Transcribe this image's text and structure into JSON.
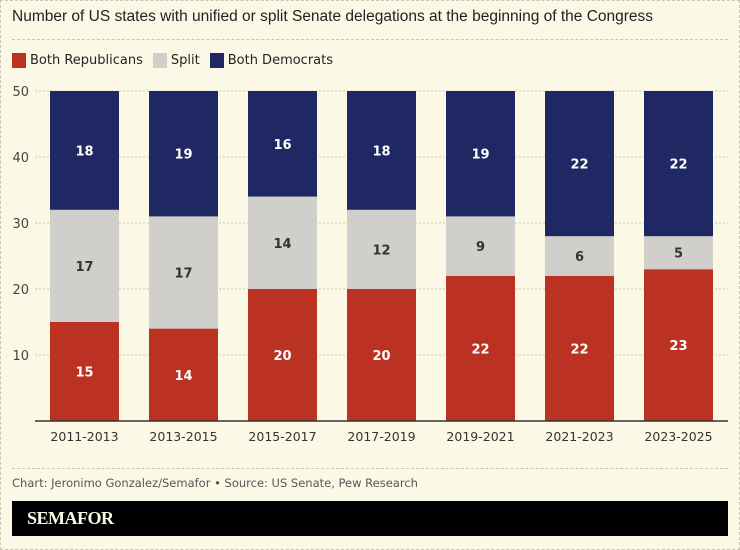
{
  "chart_data": {
    "type": "bar",
    "stacked": true,
    "title": "Number of US states with unified or split Senate delegations at the beginning of the Congress",
    "xlabel": "",
    "ylabel": "",
    "ylim": [
      0,
      50
    ],
    "yticks": [
      10,
      20,
      30,
      40,
      50
    ],
    "grid": true,
    "legend_position": "top-left",
    "categories": [
      "2011-2013",
      "2013-2015",
      "2015-2017",
      "2017-2019",
      "2019-2021",
      "2021-2023",
      "2023-2025"
    ],
    "series": [
      {
        "name": "Both Republicans",
        "color": "#bc3222",
        "label_color": "#ffffff",
        "values": [
          15,
          14,
          20,
          20,
          22,
          22,
          23
        ]
      },
      {
        "name": "Split",
        "color": "#d0cfcc",
        "label_color": "#333333",
        "values": [
          17,
          17,
          14,
          12,
          9,
          6,
          5
        ]
      },
      {
        "name": "Both Democrats",
        "color": "#1f2863",
        "label_color": "#ffffff",
        "values": [
          18,
          19,
          16,
          18,
          19,
          22,
          22
        ]
      }
    ]
  },
  "source": "Chart: Jeronimo Gonzalez/Semafor • Source: US Senate, Pew Research",
  "brand": "SEMAFOR"
}
